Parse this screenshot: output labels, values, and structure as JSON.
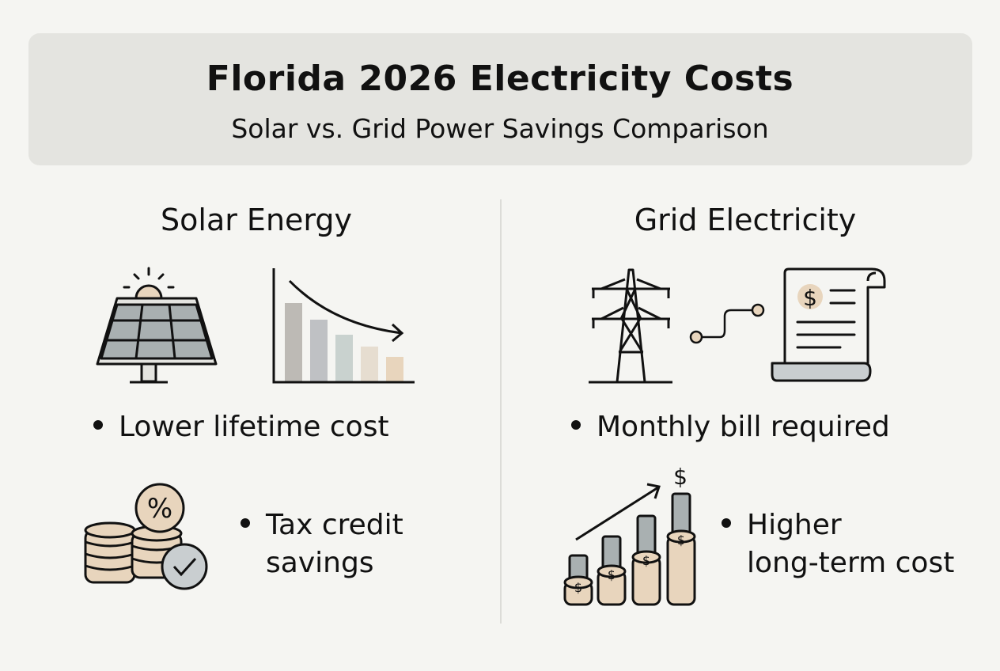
{
  "header": {
    "title": "Florida 2026 Electricity Costs",
    "subtitle": "Solar vs. Grid Power Savings Comparison"
  },
  "solar": {
    "heading": "Solar Energy",
    "icons": [
      "solar-panel-icon",
      "declining-cost-chart-icon",
      "coins-percent-check-icon"
    ],
    "bullets": [
      "Lower lifetime cost",
      "Tax credit\nsavings"
    ],
    "bullet_1_lines": [
      "Tax credit",
      "savings"
    ]
  },
  "grid": {
    "heading": "Grid Electricity",
    "icons": [
      "power-tower-icon",
      "bill-invoice-icon",
      "rising-cost-coins-icon"
    ],
    "bullets": [
      "Monthly bill required",
      "Higher\nlong-term cost"
    ],
    "bullet_1_lines": [
      "Higher",
      "long-term cost"
    ]
  },
  "colors": {
    "background": "#f5f5f2",
    "header_box": "#e4e4e0",
    "beige": "#e8d5bd",
    "gray": "#a9b0b1"
  }
}
